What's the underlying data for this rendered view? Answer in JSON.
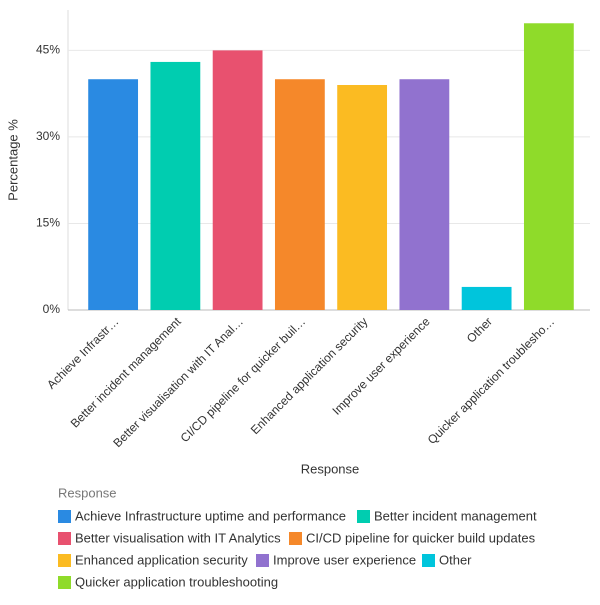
{
  "chart_data": {
    "type": "bar",
    "x_label": "Response",
    "y_label": "Percentage %",
    "legend_title": "Response",
    "categories": [
      "Achieve Infrastructure uptime and performance",
      "Better incident management",
      "Better visualisation with IT Analytics",
      "CI/CD pipeline for quicker build updates",
      "Enhanced application security",
      "Improve user experience",
      "Other",
      "Quicker application troubleshooting"
    ],
    "category_labels": [
      "Achieve Infrastr…",
      "Better incident management",
      "Better visualisation with IT Anal…",
      "CI/CD pipeline for quicker buil…",
      "Enhanced application security",
      "Improve user experience",
      "Other",
      "Quicker application troublesho…"
    ],
    "values": [
      40,
      43,
      45,
      40,
      39,
      40,
      4,
      49.7
    ],
    "colors": [
      "#2a8ae2",
      "#00cdb0",
      "#e8516f",
      "#f5882a",
      "#fbbb22",
      "#9172cf",
      "#00c5dc",
      "#8fdb2a"
    ],
    "ylim": [
      0,
      52
    ],
    "yticks": [
      {
        "value": 0,
        "label": "0%"
      },
      {
        "value": 15,
        "label": "15%"
      },
      {
        "value": 30,
        "label": "30%"
      },
      {
        "value": 45,
        "label": "45%"
      }
    ],
    "grid": true
  }
}
